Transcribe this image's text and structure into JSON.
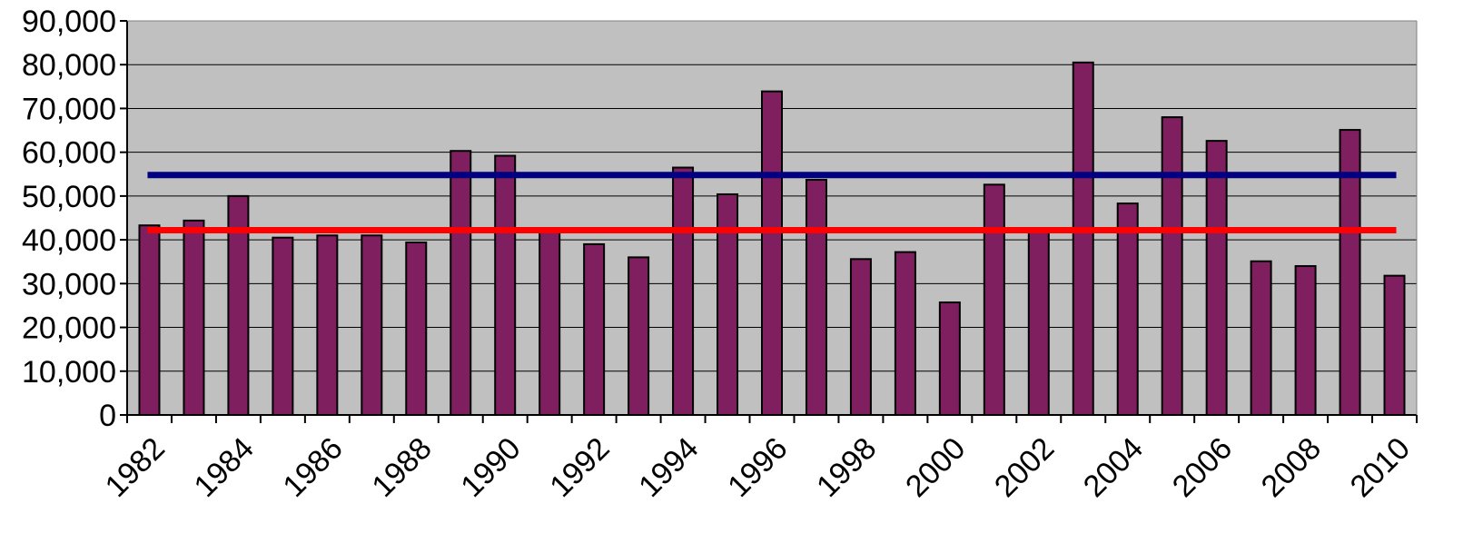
{
  "chart_data": {
    "type": "bar",
    "title": "",
    "xlabel": "",
    "ylabel": "",
    "ylim": [
      0,
      90000
    ],
    "yticks": [
      0,
      10000,
      20000,
      30000,
      40000,
      50000,
      60000,
      70000,
      80000,
      90000
    ],
    "ytick_labels": [
      "0",
      "10,000",
      "20,000",
      "30,000",
      "40,000",
      "50,000",
      "60,000",
      "70,000",
      "80,000",
      "90,000"
    ],
    "categories": [
      "1982",
      "1983",
      "1984",
      "1985",
      "1986",
      "1987",
      "1988",
      "1989",
      "1990",
      "1991",
      "1992",
      "1993",
      "1994",
      "1995",
      "1996",
      "1997",
      "1998",
      "1999",
      "2000",
      "2001",
      "2002",
      "2003",
      "2004",
      "2005",
      "2006",
      "2007",
      "2008",
      "2009",
      "2010"
    ],
    "xtick_labels": [
      "1982",
      "1984",
      "1986",
      "1988",
      "1990",
      "1992",
      "1994",
      "1996",
      "1998",
      "2000",
      "2002",
      "2004",
      "2006",
      "2008",
      "2010"
    ],
    "values": [
      43300,
      44400,
      50000,
      40500,
      41000,
      41000,
      39400,
      60300,
      59200,
      42600,
      39000,
      36000,
      56500,
      50400,
      73900,
      53700,
      35600,
      37200,
      25700,
      52600,
      42400,
      80500,
      48300,
      68000,
      62600,
      35100,
      34000,
      65100,
      31800
    ],
    "reference_lines": [
      {
        "value": 54800,
        "color": "#000080"
      },
      {
        "value": 42200,
        "color": "#ff0000"
      }
    ],
    "grid": true,
    "legend": "none",
    "colors": {
      "bar_fill": "#7f1f5f",
      "bar_stroke": "#000000",
      "plot_background": "#c0c0c0",
      "gridline": "#000000"
    }
  }
}
